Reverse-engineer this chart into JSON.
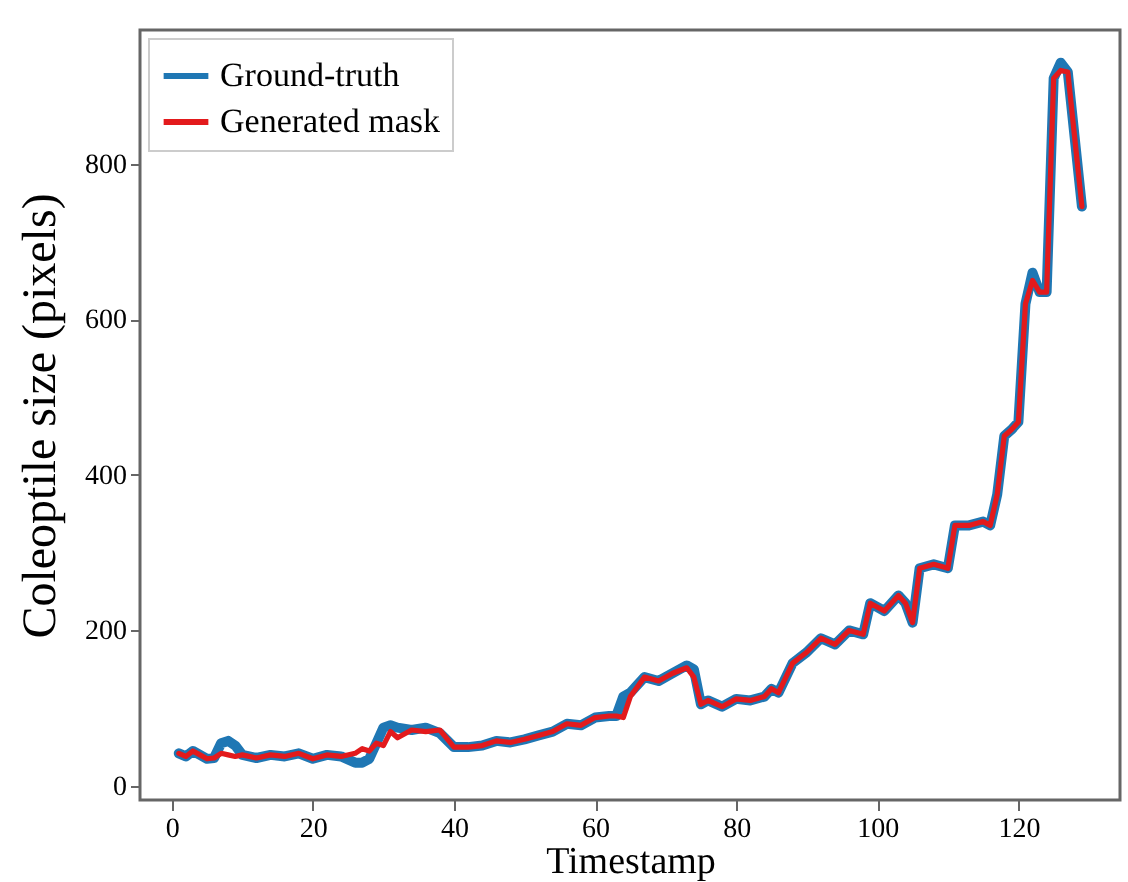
{
  "chart_data": {
    "type": "line",
    "xlabel": "Timestamp",
    "ylabel": "Coleoptile size (pixels)",
    "xlim": [
      -4.5,
      134.4
    ],
    "xticks": [
      0,
      20,
      40,
      60,
      80,
      100,
      120
    ],
    "ylim": [
      -18,
      972
    ],
    "yticks": [
      0,
      200,
      400,
      600,
      800
    ],
    "grid": false,
    "legend": "top left",
    "line_style": "solid",
    "marker": "none",
    "series": [
      {
        "name": "Ground-truth",
        "color": "#1f77b4",
        "x": [
          1,
          2,
          3,
          4,
          5,
          6,
          7,
          8,
          9,
          10,
          12,
          14,
          16,
          18,
          20,
          22,
          24,
          26,
          27,
          28,
          29,
          30,
          31,
          32,
          34,
          36,
          38,
          40,
          42,
          44,
          46,
          48,
          50,
          52,
          54,
          56,
          58,
          60,
          62,
          63,
          64,
          65,
          67,
          69,
          71,
          73,
          74,
          75,
          76,
          78,
          80,
          82,
          84,
          85,
          86,
          88,
          90,
          92,
          94,
          96,
          98,
          99,
          101,
          103,
          104,
          105,
          106,
          108,
          110,
          111,
          113,
          115,
          116,
          117,
          118,
          119,
          120,
          121,
          122,
          123,
          124,
          125,
          126,
          127,
          129
        ],
        "values": [
          42,
          38,
          45,
          40,
          35,
          36,
          55,
          58,
          52,
          40,
          36,
          40,
          38,
          42,
          35,
          40,
          38,
          30,
          30,
          35,
          55,
          75,
          78,
          75,
          72,
          75,
          68,
          50,
          50,
          52,
          58,
          56,
          60,
          65,
          70,
          80,
          78,
          88,
          90,
          90,
          115,
          120,
          140,
          135,
          145,
          155,
          150,
          105,
          110,
          102,
          112,
          110,
          115,
          125,
          120,
          158,
          172,
          190,
          182,
          200,
          195,
          235,
          225,
          245,
          235,
          210,
          280,
          285,
          280,
          335,
          335,
          340,
          335,
          375,
          450,
          458,
          468,
          620,
          660,
          635,
          635,
          910,
          930,
          918,
          745
        ]
      },
      {
        "name": "Generated mask",
        "color": "#e31a1c",
        "x": [
          1,
          2,
          3,
          4,
          5,
          6,
          7,
          8,
          9,
          10,
          12,
          14,
          16,
          18,
          20,
          22,
          24,
          26,
          27,
          28,
          29,
          30,
          31,
          32,
          34,
          36,
          38,
          40,
          42,
          44,
          46,
          48,
          50,
          52,
          54,
          56,
          58,
          60,
          62,
          63,
          64,
          65,
          67,
          69,
          71,
          73,
          74,
          75,
          76,
          78,
          80,
          82,
          84,
          85,
          86,
          88,
          90,
          92,
          94,
          96,
          98,
          99,
          101,
          103,
          104,
          105,
          106,
          108,
          110,
          111,
          113,
          115,
          116,
          117,
          118,
          119,
          120,
          121,
          122,
          123,
          124,
          125,
          126,
          127,
          129
        ],
        "values": [
          42,
          38,
          45,
          40,
          35,
          36,
          42,
          40,
          38,
          40,
          36,
          40,
          38,
          42,
          35,
          40,
          38,
          42,
          48,
          45,
          55,
          52,
          70,
          62,
          72,
          70,
          72,
          50,
          50,
          52,
          58,
          56,
          60,
          65,
          70,
          80,
          78,
          88,
          90,
          90,
          88,
          115,
          140,
          135,
          145,
          152,
          140,
          105,
          110,
          102,
          112,
          110,
          115,
          125,
          120,
          158,
          172,
          190,
          182,
          200,
          195,
          235,
          225,
          245,
          235,
          210,
          280,
          285,
          280,
          335,
          335,
          340,
          335,
          375,
          450,
          458,
          468,
          620,
          650,
          635,
          635,
          910,
          920,
          918,
          745
        ]
      }
    ]
  }
}
